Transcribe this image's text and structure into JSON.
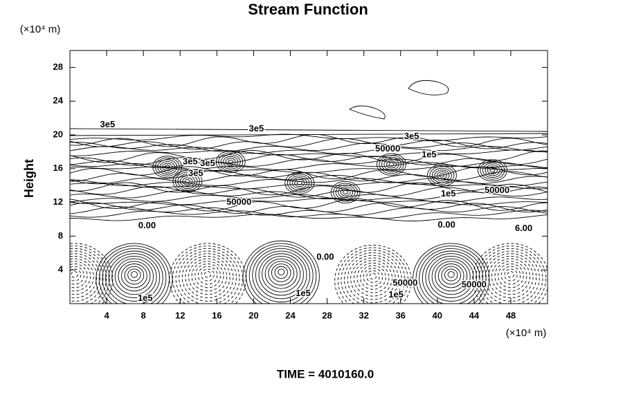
{
  "chart_data": {
    "type": "contour",
    "title": "Stream Function",
    "y_unit": "(×10⁴ m)",
    "x_unit": "(×10⁴ m)",
    "y_label": "Height",
    "footer": "TIME = 4010160.0",
    "xlim": [
      0,
      52
    ],
    "ylim": [
      0,
      30
    ],
    "xticks": [
      4,
      8,
      12,
      16,
      20,
      24,
      28,
      32,
      36,
      40,
      44,
      48
    ],
    "yticks": [
      4,
      8,
      12,
      16,
      20,
      24,
      28
    ],
    "contour_labels": [
      {
        "text": "3e5",
        "x": 4.1,
        "y": 21.2
      },
      {
        "text": "3e5",
        "x": 20.3,
        "y": 20.7
      },
      {
        "text": "3e5",
        "x": 37.2,
        "y": 19.8
      },
      {
        "text": "50000",
        "x": 34.6,
        "y": 18.3
      },
      {
        "text": "1e5",
        "x": 39.1,
        "y": 17.6
      },
      {
        "text": "3e5",
        "x": 13.1,
        "y": 16.8
      },
      {
        "text": "3e5",
        "x": 15.0,
        "y": 16.6
      },
      {
        "text": "3e5",
        "x": 13.7,
        "y": 15.4
      },
      {
        "text": "50000",
        "x": 18.4,
        "y": 12.0
      },
      {
        "text": "50000",
        "x": 46.5,
        "y": 13.4
      },
      {
        "text": "1e5",
        "x": 41.2,
        "y": 13.0
      },
      {
        "text": "0.00",
        "x": 8.4,
        "y": 9.2
      },
      {
        "text": "0.00",
        "x": 41.0,
        "y": 9.3
      },
      {
        "text": "6.00",
        "x": 49.4,
        "y": 8.9
      },
      {
        "text": "0.00",
        "x": 27.8,
        "y": 5.5
      },
      {
        "text": "1e5",
        "x": 8.2,
        "y": 0.6
      },
      {
        "text": "1e5",
        "x": 25.4,
        "y": 1.2
      },
      {
        "text": "1e5",
        "x": 35.5,
        "y": 1.0
      },
      {
        "text": "50000",
        "x": 36.5,
        "y": 2.4
      },
      {
        "text": "50000",
        "x": 44.0,
        "y": 2.2
      }
    ]
  }
}
